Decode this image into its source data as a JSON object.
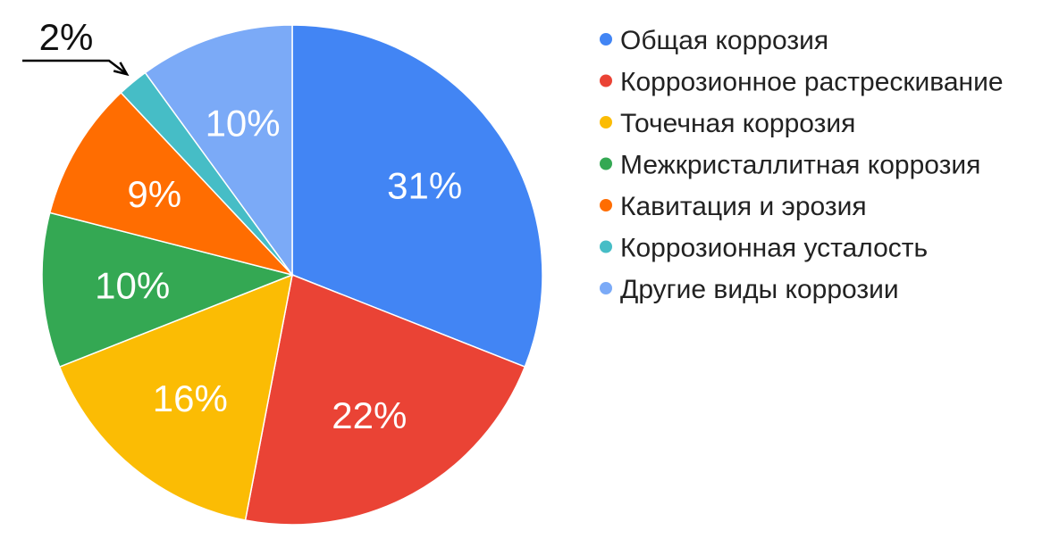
{
  "chart_data": {
    "type": "pie",
    "categories": [
      "Общая коррозия",
      "Коррозионное растрескивание",
      "Точечная коррозия",
      "Межкристаллитная коррозия",
      "Кавитация и эрозия",
      "Коррозионная усталость",
      "Другие виды коррозии"
    ],
    "values": [
      31,
      22,
      16,
      10,
      9,
      2,
      10
    ],
    "labels": [
      "31%",
      "22%",
      "16%",
      "10%",
      "9%",
      "2%",
      "10%"
    ],
    "colors": [
      "#4285F4",
      "#EA4335",
      "#FBBC04",
      "#34A853",
      "#FF6D01",
      "#46BDC6",
      "#7BAAF7"
    ],
    "legend_position": "right",
    "start": "top",
    "direction": "clockwise"
  }
}
